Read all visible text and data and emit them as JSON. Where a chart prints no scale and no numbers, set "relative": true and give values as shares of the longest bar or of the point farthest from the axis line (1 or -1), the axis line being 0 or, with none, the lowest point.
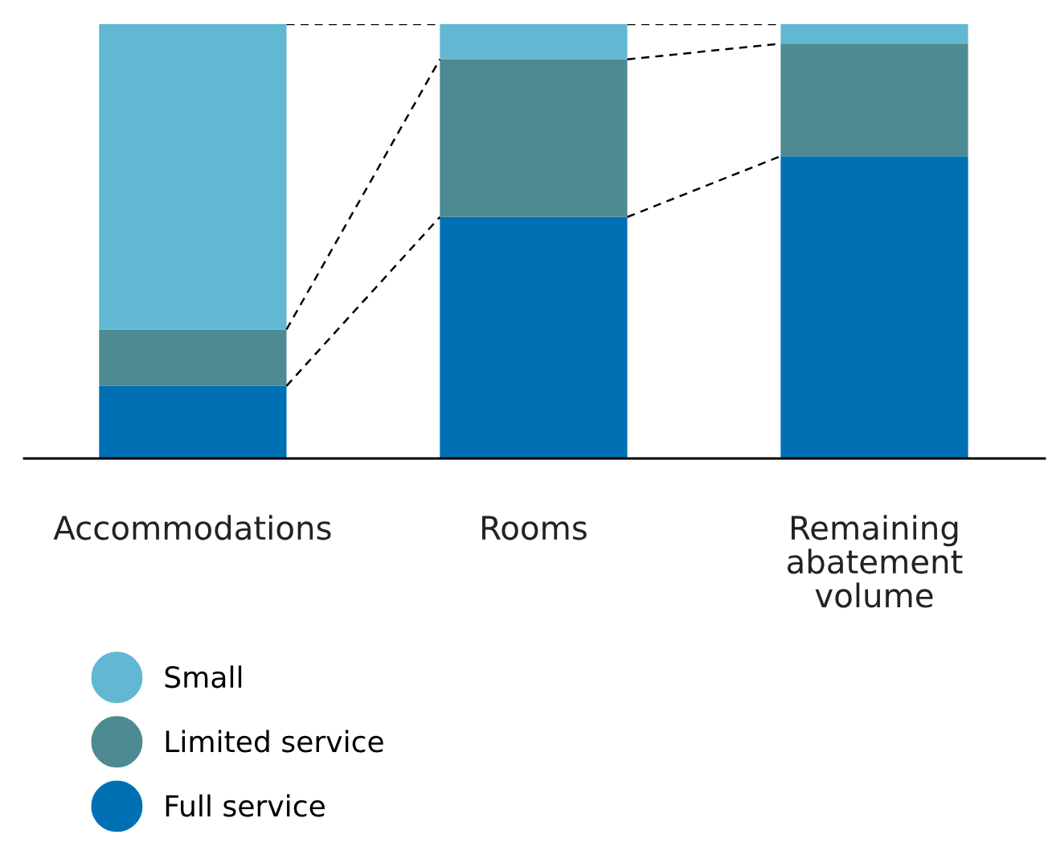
{
  "chart_data": {
    "type": "bar",
    "stacked": true,
    "relative": true,
    "categories": [
      "Accommodations",
      "Rooms",
      "Remaining abatement volume"
    ],
    "series": [
      {
        "name": "Full service",
        "color": "#0070b4",
        "values": [
          0.167,
          0.556,
          0.696
        ]
      },
      {
        "name": "Limited service",
        "color": "#4e8a92",
        "values": [
          0.13,
          0.363,
          0.259
        ]
      },
      {
        "name": "Small",
        "color": "#62b8d3",
        "values": [
          0.703,
          0.081,
          0.045
        ]
      }
    ],
    "legend": "bottom left",
    "marker": "circle"
  }
}
